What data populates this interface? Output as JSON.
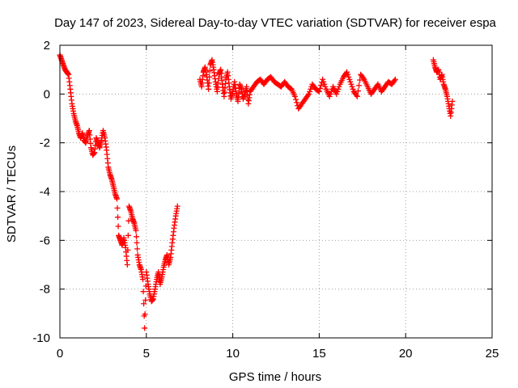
{
  "chart_data": {
    "type": "scatter",
    "title": "Day 147 of 2023, Sidereal Day-to-day VTEC variation (SDTVAR) for receiver espa",
    "xlabel": "GPS time / hours",
    "ylabel": "SDTVAR / TECUs",
    "xlim": [
      0,
      25
    ],
    "ylim": [
      -10,
      2
    ],
    "xticks": [
      0,
      5,
      10,
      15,
      20,
      25
    ],
    "yticks": [
      -10,
      -8,
      -6,
      -4,
      -2,
      0,
      2
    ],
    "xtick_labels": [
      "0",
      "5",
      "10",
      "15",
      "20",
      "25"
    ],
    "ytick_labels": [
      "-10",
      "-8",
      "-6",
      "-4",
      "-2",
      "0",
      "2"
    ],
    "grid": true,
    "marker": "+",
    "marker_color": "#ff0000",
    "series": [
      {
        "name": "SDTVAR",
        "segments": [
          {
            "x": [
              0.0,
              0.1,
              0.2,
              0.3,
              0.4,
              0.5,
              0.6,
              0.7,
              0.8,
              0.9,
              1.0,
              1.1,
              1.2,
              1.3,
              1.4,
              1.5,
              1.6,
              1.7,
              1.8,
              1.9,
              2.0,
              2.1,
              2.2,
              2.3,
              2.4,
              2.5,
              2.6,
              2.7,
              2.8,
              2.9,
              3.0,
              3.1,
              3.2,
              3.3,
              3.4,
              3.5,
              3.6,
              3.7,
              3.8,
              3.9,
              4.0,
              4.1,
              4.2,
              4.3,
              4.4,
              4.5,
              4.6,
              4.7,
              4.8,
              4.9,
              5.0,
              5.1,
              5.2,
              5.3,
              5.4,
              5.5,
              5.6,
              5.7,
              5.8,
              5.9,
              6.0,
              6.1,
              6.2,
              6.3,
              6.4,
              6.5,
              6.6,
              6.7,
              6.8
            ],
            "y": [
              1.6,
              1.4,
              1.2,
              1.0,
              0.9,
              0.8,
              0.2,
              -0.4,
              -0.8,
              -1.1,
              -1.3,
              -1.6,
              -1.8,
              -1.6,
              -1.9,
              -2.0,
              -1.7,
              -1.5,
              -2.2,
              -2.5,
              -2.4,
              -1.8,
              -2.0,
              -2.2,
              -1.9,
              -1.5,
              -1.8,
              -2.3,
              -3.0,
              -3.3,
              -3.5,
              -3.8,
              -4.1,
              -4.3,
              -5.8,
              -6.0,
              -6.2,
              -5.9,
              -6.3,
              -7.0,
              -4.6,
              -4.8,
              -5.1,
              -5.3,
              -5.6,
              -6.6,
              -7.0,
              -7.2,
              -7.6,
              -9.6,
              -7.3,
              -7.8,
              -8.2,
              -8.5,
              -8.4,
              -8.0,
              -7.6,
              -7.3,
              -7.8,
              -7.5,
              -7.1,
              -6.8,
              -6.6,
              -7.0,
              -6.7,
              -6.1,
              -5.5,
              -5.0,
              -4.6
            ]
          },
          {
            "x": [
              8.1,
              8.2,
              8.3,
              8.4,
              8.5,
              8.6,
              8.7,
              8.8,
              8.9,
              9.0,
              9.1,
              9.2,
              9.3,
              9.4,
              9.5,
              9.6,
              9.7,
              9.8,
              9.9,
              10.0,
              10.1,
              10.2,
              10.3,
              10.4,
              10.5,
              10.6,
              10.7,
              10.8,
              10.9,
              11.0,
              11.2,
              11.4,
              11.6,
              11.8,
              12.0,
              12.2,
              12.4,
              12.6,
              12.8,
              13.0,
              13.2,
              13.4,
              13.6,
              13.8,
              14.0,
              14.2,
              14.4,
              14.6,
              14.8,
              15.0,
              15.2,
              15.4,
              15.6,
              15.8,
              16.0,
              16.2,
              16.4,
              16.6,
              16.8,
              17.0,
              17.2,
              17.4,
              17.6,
              17.8,
              18.0,
              18.2,
              18.4,
              18.6,
              18.8,
              19.0,
              19.2,
              19.4
            ],
            "y": [
              0.6,
              0.3,
              0.9,
              1.1,
              0.7,
              0.2,
              1.2,
              1.4,
              1.0,
              0.5,
              0.1,
              0.8,
              1.0,
              0.4,
              -0.1,
              0.6,
              0.9,
              0.3,
              -0.2,
              0.1,
              0.5,
              0.0,
              -0.3,
              0.4,
              0.2,
              -0.2,
              0.0,
              0.3,
              -0.4,
              0.1,
              0.3,
              0.5,
              0.6,
              0.4,
              0.6,
              0.7,
              0.5,
              0.4,
              0.3,
              0.5,
              0.3,
              0.2,
              -0.1,
              -0.6,
              -0.4,
              -0.2,
              0.0,
              0.4,
              0.2,
              0.1,
              0.6,
              0.2,
              -0.1,
              0.3,
              0.0,
              0.4,
              0.7,
              0.9,
              0.5,
              0.1,
              -0.1,
              0.8,
              0.6,
              0.3,
              0.0,
              0.2,
              0.4,
              0.1,
              0.3,
              0.5,
              0.4,
              0.6
            ]
          },
          {
            "x": [
              21.6,
              21.7,
              21.8,
              21.9,
              22.0,
              22.1,
              22.2,
              22.3,
              22.4,
              22.5,
              22.6,
              22.7
            ],
            "y": [
              1.4,
              1.1,
              0.9,
              1.0,
              0.6,
              0.8,
              0.4,
              0.2,
              -0.1,
              -0.5,
              -0.9,
              -0.3
            ]
          }
        ]
      }
    ]
  }
}
